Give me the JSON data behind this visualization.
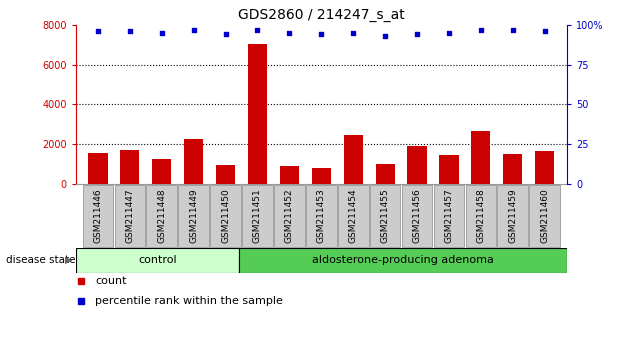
{
  "title": "GDS2860 / 214247_s_at",
  "samples": [
    "GSM211446",
    "GSM211447",
    "GSM211448",
    "GSM211449",
    "GSM211450",
    "GSM211451",
    "GSM211452",
    "GSM211453",
    "GSM211454",
    "GSM211455",
    "GSM211456",
    "GSM211457",
    "GSM211458",
    "GSM211459",
    "GSM211460"
  ],
  "counts": [
    1550,
    1700,
    1270,
    2250,
    950,
    7050,
    900,
    800,
    2450,
    1000,
    1900,
    1450,
    2650,
    1500,
    1650
  ],
  "percentiles": [
    96,
    96,
    95,
    97,
    94,
    97,
    95,
    94,
    95,
    93,
    94,
    95,
    97,
    97,
    96
  ],
  "ylim_left": [
    0,
    8000
  ],
  "ylim_right": [
    0,
    100
  ],
  "yticks_left": [
    0,
    2000,
    4000,
    6000,
    8000
  ],
  "yticks_right": [
    0,
    25,
    50,
    75,
    100
  ],
  "control_count": 5,
  "adenoma_count": 10,
  "bar_color": "#cc0000",
  "dot_color": "#0000cc",
  "control_bg": "#ccffcc",
  "adenoma_bg": "#55cc55",
  "tick_label_bg": "#cccccc",
  "left_axis_color": "#cc0000",
  "right_axis_color": "#0000cc",
  "control_label": "control",
  "adenoma_label": "aldosterone-producing adenoma",
  "disease_state_label": "disease state",
  "legend_count_label": "count",
  "legend_percentile_label": "percentile rank within the sample",
  "title_fontsize": 10,
  "tick_fontsize": 7
}
